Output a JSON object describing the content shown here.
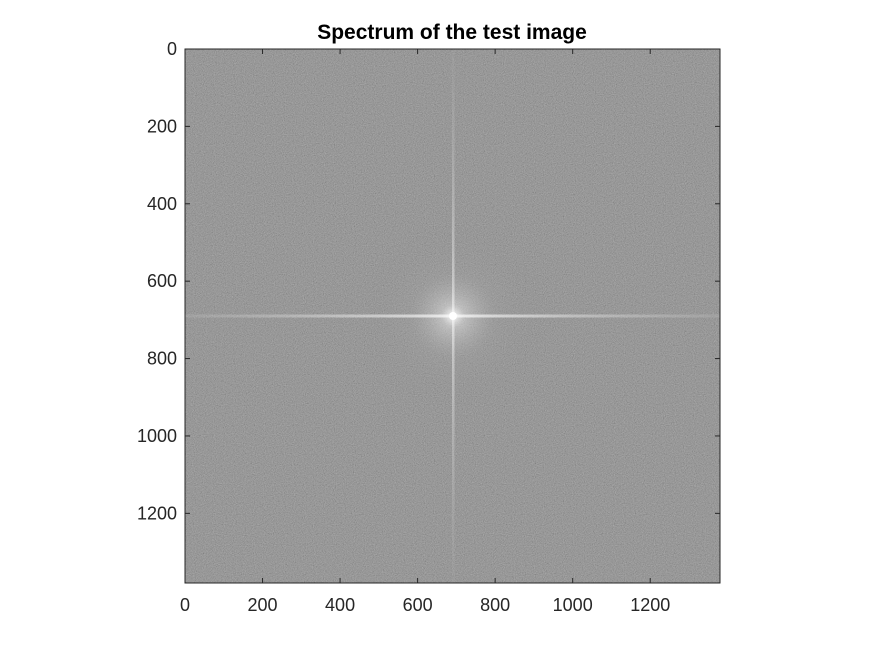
{
  "title": "Spectrum of the test image",
  "image": {
    "description_colors": {
      "background_gray": "#555555",
      "bright_center": "#f0f0f0"
    },
    "x_range": [
      0,
      1380
    ],
    "y_range": [
      0,
      1380
    ],
    "center": [
      690,
      690
    ]
  },
  "axes": {
    "x_ticks": [
      "0",
      "200",
      "400",
      "600",
      "800",
      "1000",
      "1200"
    ],
    "y_ticks": [
      "0",
      "200",
      "400",
      "600",
      "800",
      "1000",
      "1200"
    ]
  }
}
